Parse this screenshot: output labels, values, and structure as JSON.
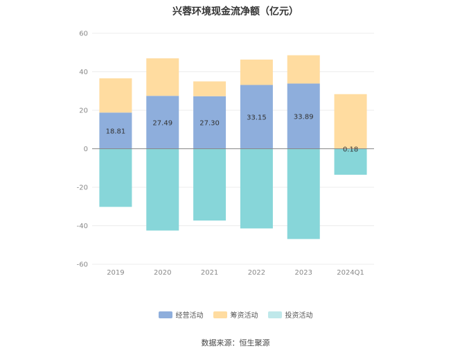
{
  "title": "兴蓉环境现金流净额（亿元）",
  "source": "数据来源：恒生聚源",
  "colors": {
    "operating": "#8eaedc",
    "financing": "#ffdca0",
    "investing": "#87d6d9",
    "investing_legend": "#bfe8ea"
  },
  "chart_data": {
    "type": "bar",
    "stacked": true,
    "categories": [
      "2019",
      "2020",
      "2021",
      "2022",
      "2023",
      "2024Q1"
    ],
    "ylim": [
      -60,
      60
    ],
    "yticks": [
      60,
      40,
      20,
      0,
      -20,
      -40,
      -60
    ],
    "grid": true,
    "legend_position": "bottom",
    "series": [
      {
        "name": "经营活动",
        "key": "operating",
        "values": [
          18.81,
          27.49,
          27.3,
          33.15,
          33.89,
          0.18
        ],
        "labels": [
          "18.81",
          "27.49",
          "27.30",
          "33.15",
          "33.89",
          "0.18"
        ]
      },
      {
        "name": "筹资活动",
        "key": "financing",
        "values": [
          17.8,
          19.5,
          7.7,
          13.2,
          14.7,
          28.2
        ]
      },
      {
        "name": "投资活动",
        "key": "investing",
        "values": [
          -30.2,
          -42.5,
          -37.3,
          -41.4,
          -46.9,
          -13.5
        ]
      }
    ]
  }
}
